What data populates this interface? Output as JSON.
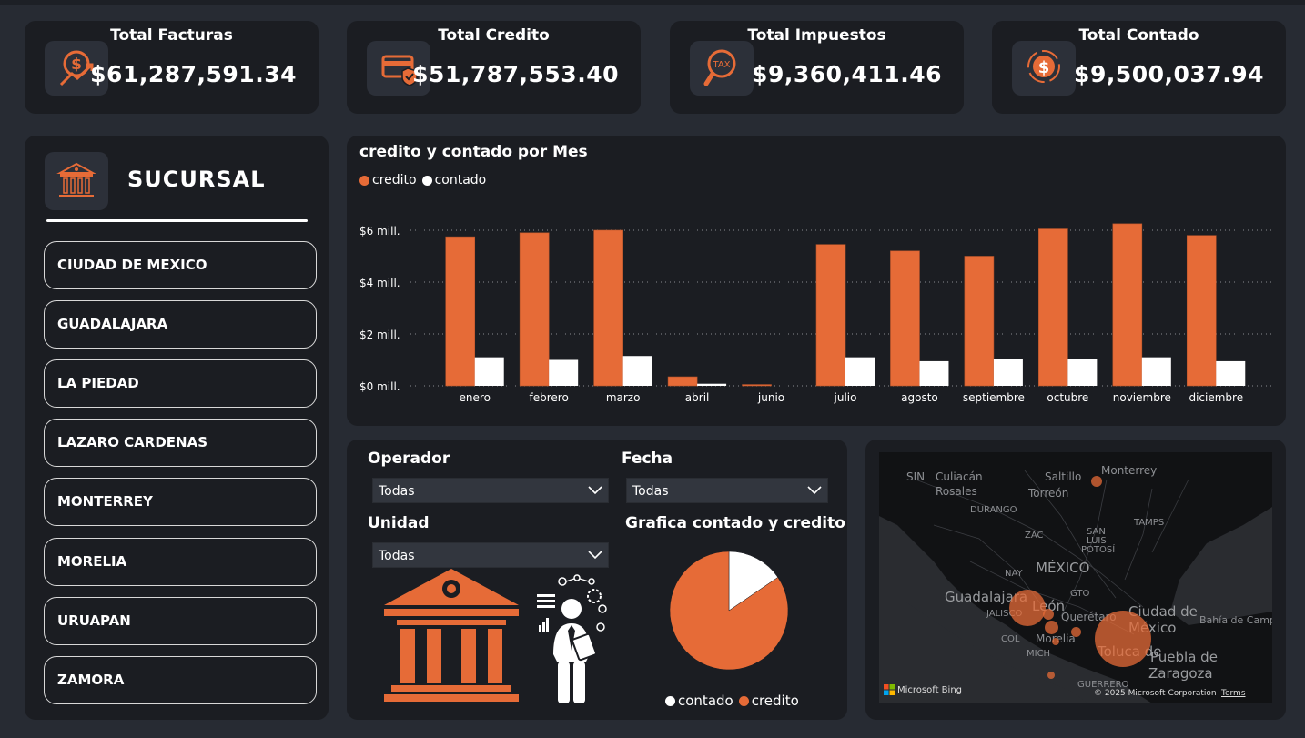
{
  "kpis": [
    {
      "title": "Total Facturas",
      "value": "$61,287,591.34",
      "icon": "money-growth-icon"
    },
    {
      "title": "Total Credito",
      "value": "$51,787,553.40",
      "icon": "credit-card-shield-icon"
    },
    {
      "title": "Total Impuestos",
      "value": "$9,360,411.46",
      "icon": "tax-magnifier-icon"
    },
    {
      "title": "Total Contado",
      "value": "$9,500,037.94",
      "icon": "dollar-exchange-icon"
    }
  ],
  "sucursal": {
    "title": "SUCURSAL",
    "icon": "bank-icon",
    "items": [
      "CIUDAD DE MEXICO",
      "GUADALAJARA",
      "LA PIEDAD",
      "LAZARO CARDENAS",
      "MONTERREY",
      "MORELIA",
      "URUAPAN",
      "ZAMORA"
    ]
  },
  "colors": {
    "credito": "#e66b37",
    "contado": "#ffffff",
    "background": "#272b33",
    "panel": "#1b1d22"
  },
  "chart_data": [
    {
      "type": "bar",
      "title": "credito y contado por Mes",
      "categories": [
        "enero",
        "febrero",
        "marzo",
        "abril",
        "junio",
        "julio",
        "agosto",
        "septiembre",
        "octubre",
        "noviembre",
        "diciembre"
      ],
      "series": [
        {
          "name": "credito",
          "values": [
            5.75,
            5.9,
            6.0,
            0.35,
            0.05,
            5.45,
            5.2,
            5.0,
            6.05,
            6.25,
            5.8
          ]
        },
        {
          "name": "contado",
          "values": [
            1.1,
            1.0,
            1.15,
            0.08,
            0.0,
            1.1,
            0.95,
            1.05,
            1.05,
            1.1,
            0.95
          ]
        }
      ],
      "ylim": [
        0,
        6
      ],
      "yticks": [
        "$0 mill.",
        "$2 mill.",
        "$4 mill.",
        "$6 mill."
      ],
      "ytick_values": [
        0,
        2,
        4,
        6
      ],
      "grid": true,
      "legend_position": "top-left"
    },
    {
      "type": "pie",
      "title": "Grafica contado y credito",
      "labels": [
        "contado",
        "credito"
      ],
      "values": [
        9500037.94,
        51787553.4
      ],
      "legend_position": "bottom"
    }
  ],
  "filters": {
    "operador": {
      "label": "Operador",
      "value": "Todas"
    },
    "fecha": {
      "label": "Fecha",
      "value": "Todas"
    },
    "unidad": {
      "label": "Unidad",
      "value": "Todas"
    }
  },
  "map": {
    "labels": [
      "SIN",
      "Culiacán",
      "Rosales",
      "Saltillo",
      "Torreón",
      "Monterrey",
      "DURANGO",
      "TAMPS",
      "SAN",
      "LUIS",
      "POTOSÍ",
      "ZAC",
      "MÉXICO",
      "NAY",
      "Guadalajara",
      "León",
      "GTO",
      "JALISCO",
      "Querétaro",
      "Ciudad de",
      "México",
      "Bahía de Campe",
      "COL",
      "Morelia",
      "MICH",
      "Toluca de",
      "Puebla de",
      "Zaragoza",
      "GUERRERO"
    ],
    "bubbles": [
      {
        "city": "Monterrey",
        "size": "small"
      },
      {
        "city": "Guadalajara",
        "size": "medium"
      },
      {
        "city": "La Piedad",
        "size": "small"
      },
      {
        "city": "Zamora",
        "size": "small"
      },
      {
        "city": "Morelia",
        "size": "small"
      },
      {
        "city": "Uruapan",
        "size": "small"
      },
      {
        "city": "Ciudad de Mexico",
        "size": "large"
      },
      {
        "city": "Lazaro Cardenas",
        "size": "small"
      }
    ],
    "brand": "Microsoft Bing",
    "copyright": "© 2025 Microsoft Corporation",
    "terms": "Terms"
  }
}
